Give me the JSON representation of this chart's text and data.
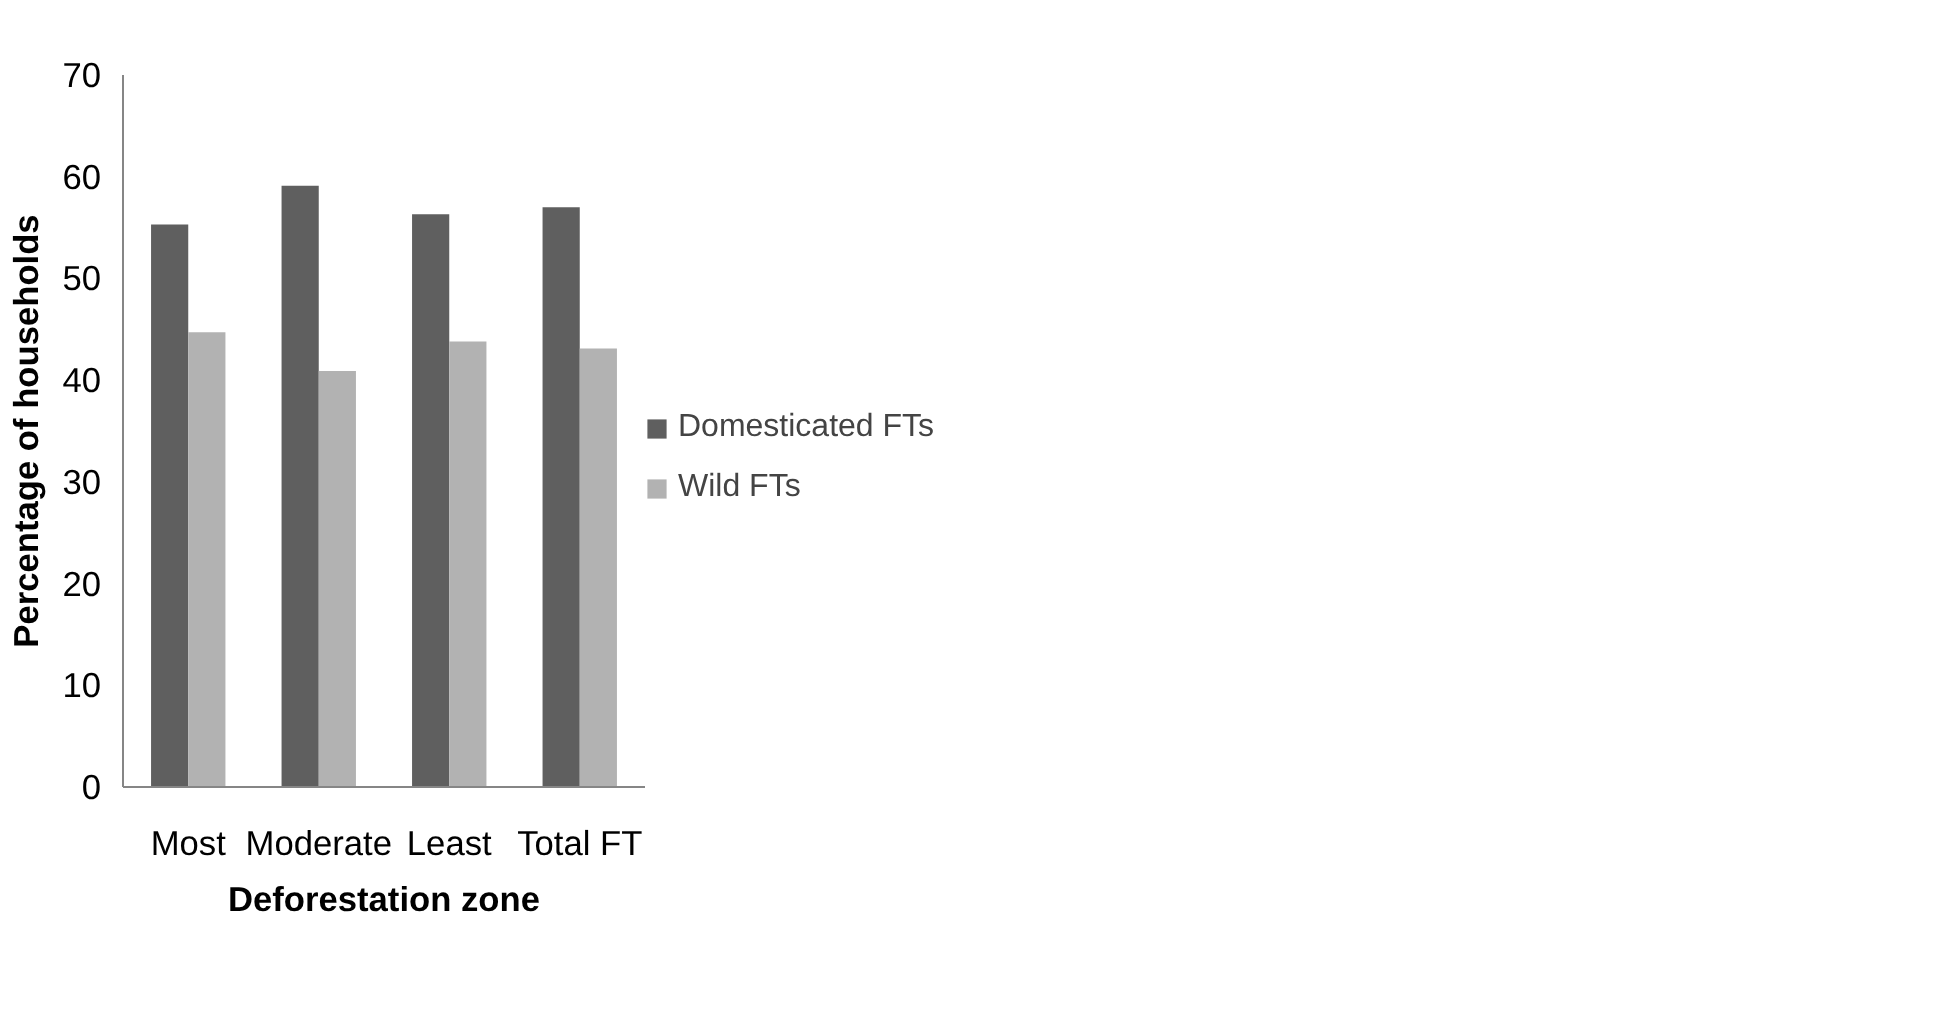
{
  "chart_data": {
    "type": "bar",
    "xlabel": "Deforestation zone",
    "ylabel": "Percentage of households",
    "categories": [
      "Most",
      "Moderate",
      "Least",
      "Total FT"
    ],
    "series": [
      {
        "name": "Domesticated FTs",
        "color": "#5f5f5f",
        "values": [
          55.3,
          59.1,
          56.3,
          57.0
        ]
      },
      {
        "name": "Wild FTs",
        "color": "#b2b2b2",
        "values": [
          44.7,
          40.9,
          43.8,
          43.1
        ]
      }
    ],
    "ylim": [
      0,
      70
    ],
    "yticks": [
      0,
      10,
      20,
      30,
      40,
      50,
      60,
      70
    ],
    "grid": false,
    "legend": "right"
  }
}
